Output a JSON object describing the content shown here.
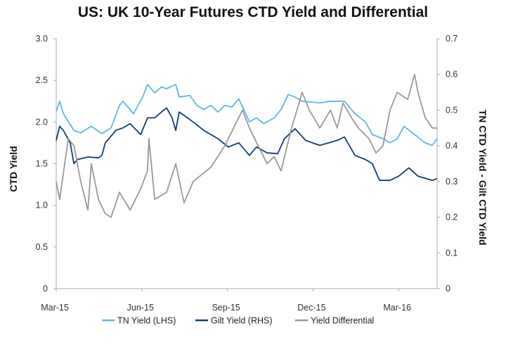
{
  "chart_data": {
    "type": "line",
    "title": "US: UK 10-Year Futures CTD Yield and Differential",
    "xlabel": "",
    "ylabel_left": "CTD Yield",
    "ylabel_right": "TN CTD Yield - Gilt CTD Yield",
    "x_unit": "months since Mar-15",
    "xlim": [
      0,
      13.35
    ],
    "x_ticks": [
      {
        "x": 0,
        "label": "Mar-15"
      },
      {
        "x": 3,
        "label": "Jun-15"
      },
      {
        "x": 6,
        "label": "Sep-15"
      },
      {
        "x": 9,
        "label": "Dec-15"
      },
      {
        "x": 12,
        "label": "Mar-16"
      }
    ],
    "ylim_left": [
      0,
      3.0
    ],
    "y_ticks_left": [
      "0",
      "0.5",
      "1.0",
      "1.5",
      "2.0",
      "2.5",
      "3.0"
    ],
    "ylim_right": [
      0,
      0.7
    ],
    "y_ticks_right": [
      "0",
      "0.1",
      "0.2",
      "0.3",
      "0.4",
      "0.5",
      "0.6",
      "0.7"
    ],
    "grid": false,
    "legend_position": "bottom",
    "series": [
      {
        "name": "TN Yield (LHS)",
        "axis": "left",
        "color": "#5bb8e6",
        "points": [
          [
            0,
            2.13
          ],
          [
            0.12,
            2.25
          ],
          [
            0.25,
            2.1
          ],
          [
            0.62,
            1.9
          ],
          [
            0.86,
            1.87
          ],
          [
            1.23,
            1.95
          ],
          [
            1.6,
            1.86
          ],
          [
            1.92,
            1.93
          ],
          [
            2.22,
            2.2
          ],
          [
            2.34,
            2.25
          ],
          [
            2.71,
            2.1
          ],
          [
            3.03,
            2.3
          ],
          [
            3.2,
            2.45
          ],
          [
            3.45,
            2.35
          ],
          [
            3.69,
            2.42
          ],
          [
            3.87,
            2.4
          ],
          [
            4.19,
            2.45
          ],
          [
            4.31,
            2.3
          ],
          [
            4.68,
            2.32
          ],
          [
            4.93,
            2.2
          ],
          [
            5.17,
            2.15
          ],
          [
            5.42,
            2.2
          ],
          [
            5.67,
            2.12
          ],
          [
            5.91,
            2.2
          ],
          [
            6.16,
            2.18
          ],
          [
            6.4,
            2.28
          ],
          [
            6.77,
            2.0
          ],
          [
            7.02,
            2.05
          ],
          [
            7.27,
            1.98
          ],
          [
            7.64,
            2.05
          ],
          [
            7.88,
            2.15
          ],
          [
            8.13,
            2.33
          ],
          [
            8.37,
            2.3
          ],
          [
            8.62,
            2.25
          ],
          [
            9.24,
            2.23
          ],
          [
            9.61,
            2.25
          ],
          [
            10.1,
            2.25
          ],
          [
            10.47,
            2.1
          ],
          [
            10.84,
            2.0
          ],
          [
            11.08,
            1.85
          ],
          [
            11.45,
            1.8
          ],
          [
            11.7,
            1.75
          ],
          [
            11.95,
            1.8
          ],
          [
            12.19,
            1.95
          ],
          [
            12.56,
            1.85
          ],
          [
            12.93,
            1.75
          ],
          [
            13.18,
            1.72
          ],
          [
            13.35,
            1.8
          ]
        ]
      },
      {
        "name": "Gilt Yield (RHS)",
        "axis": "left",
        "color": "#0f3e72",
        "points": [
          [
            0,
            1.78
          ],
          [
            0.12,
            1.95
          ],
          [
            0.25,
            1.9
          ],
          [
            0.49,
            1.75
          ],
          [
            0.62,
            1.5
          ],
          [
            0.74,
            1.55
          ],
          [
            1.11,
            1.58
          ],
          [
            1.48,
            1.57
          ],
          [
            1.6,
            1.6
          ],
          [
            1.72,
            1.75
          ],
          [
            2.09,
            1.9
          ],
          [
            2.34,
            1.93
          ],
          [
            2.59,
            1.98
          ],
          [
            2.96,
            1.85
          ],
          [
            3.2,
            2.05
          ],
          [
            3.45,
            2.05
          ],
          [
            3.69,
            2.12
          ],
          [
            3.87,
            2.17
          ],
          [
            4.06,
            2.05
          ],
          [
            4.19,
            1.9
          ],
          [
            4.31,
            2.12
          ],
          [
            4.48,
            2.08
          ],
          [
            4.8,
            2.0
          ],
          [
            5.17,
            1.9
          ],
          [
            5.67,
            1.8
          ],
          [
            6.03,
            1.7
          ],
          [
            6.4,
            1.75
          ],
          [
            6.77,
            1.6
          ],
          [
            7.02,
            1.7
          ],
          [
            7.39,
            1.63
          ],
          [
            7.76,
            1.62
          ],
          [
            8.0,
            1.8
          ],
          [
            8.37,
            1.92
          ],
          [
            8.74,
            1.78
          ],
          [
            9.24,
            1.72
          ],
          [
            9.85,
            1.78
          ],
          [
            10.1,
            1.82
          ],
          [
            10.47,
            1.6
          ],
          [
            10.84,
            1.55
          ],
          [
            11.08,
            1.5
          ],
          [
            11.33,
            1.3
          ],
          [
            11.7,
            1.3
          ],
          [
            12.0,
            1.35
          ],
          [
            12.36,
            1.45
          ],
          [
            12.68,
            1.35
          ],
          [
            13.18,
            1.3
          ],
          [
            13.35,
            1.32
          ]
        ]
      },
      {
        "name": "Yield Differential",
        "axis": "right",
        "color": "#999999",
        "points": [
          [
            0,
            0.3
          ],
          [
            0.12,
            0.25
          ],
          [
            0.42,
            0.42
          ],
          [
            0.62,
            0.4
          ],
          [
            0.86,
            0.3
          ],
          [
            1.11,
            0.22
          ],
          [
            1.23,
            0.35
          ],
          [
            1.48,
            0.25
          ],
          [
            1.72,
            0.21
          ],
          [
            1.92,
            0.2
          ],
          [
            2.22,
            0.27
          ],
          [
            2.59,
            0.22
          ],
          [
            2.96,
            0.28
          ],
          [
            3.2,
            0.33
          ],
          [
            3.25,
            0.42
          ],
          [
            3.45,
            0.25
          ],
          [
            3.87,
            0.27
          ],
          [
            4.19,
            0.35
          ],
          [
            4.48,
            0.24
          ],
          [
            4.8,
            0.3
          ],
          [
            5.42,
            0.34
          ],
          [
            5.91,
            0.4
          ],
          [
            6.4,
            0.48
          ],
          [
            6.53,
            0.5
          ],
          [
            6.77,
            0.45
          ],
          [
            7.39,
            0.35
          ],
          [
            7.64,
            0.37
          ],
          [
            7.88,
            0.33
          ],
          [
            8.25,
            0.45
          ],
          [
            8.62,
            0.55
          ],
          [
            8.87,
            0.5
          ],
          [
            9.24,
            0.45
          ],
          [
            9.61,
            0.5
          ],
          [
            9.85,
            0.45
          ],
          [
            10.05,
            0.52
          ],
          [
            10.34,
            0.48
          ],
          [
            10.59,
            0.45
          ],
          [
            10.96,
            0.42
          ],
          [
            11.21,
            0.38
          ],
          [
            11.45,
            0.4
          ],
          [
            11.7,
            0.5
          ],
          [
            11.95,
            0.55
          ],
          [
            12.32,
            0.53
          ],
          [
            12.56,
            0.6
          ],
          [
            12.68,
            0.55
          ],
          [
            12.93,
            0.48
          ],
          [
            13.18,
            0.45
          ],
          [
            13.35,
            0.45
          ]
        ]
      }
    ]
  }
}
